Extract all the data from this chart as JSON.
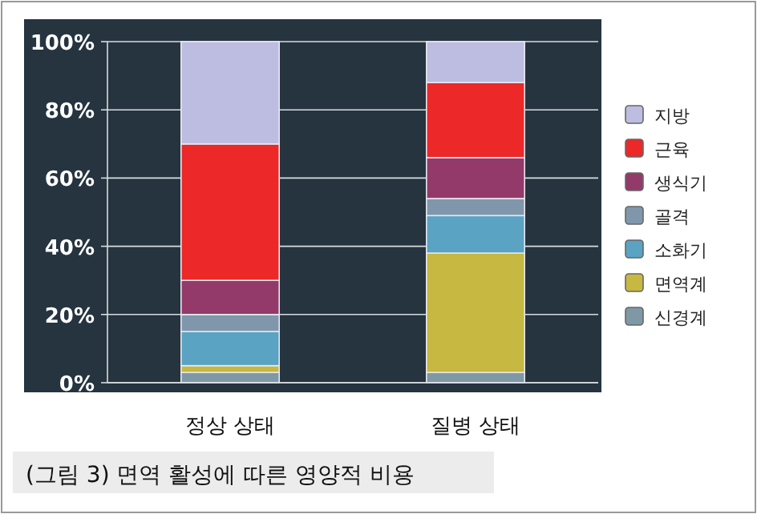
{
  "chart_data": {
    "type": "bar",
    "stacked": true,
    "categories": [
      "정상 상태",
      "질병 상태"
    ],
    "series": [
      {
        "name": "신경계",
        "color": "#7f98a6",
        "values": [
          3,
          3
        ]
      },
      {
        "name": "면역계",
        "color": "#c6b840",
        "values": [
          2,
          35
        ]
      },
      {
        "name": "소화기",
        "color": "#5aa3c3",
        "values": [
          10,
          11
        ]
      },
      {
        "name": "골격",
        "color": "#8097ab",
        "values": [
          5,
          5
        ]
      },
      {
        "name": "생식기",
        "color": "#933a6a",
        "values": [
          10,
          12
        ]
      },
      {
        "name": "근육",
        "color": "#ec2828",
        "values": [
          40,
          22
        ]
      },
      {
        "name": "지방",
        "color": "#bcbde0",
        "values": [
          30,
          12
        ]
      }
    ],
    "ylim": [
      0,
      100
    ],
    "yticks": [
      {
        "value": 0,
        "label": "0%"
      },
      {
        "value": 20,
        "label": "20%"
      },
      {
        "value": 40,
        "label": "40%"
      },
      {
        "value": 60,
        "label": "60%"
      },
      {
        "value": 80,
        "label": "80%"
      },
      {
        "value": 100,
        "label": "100%"
      }
    ],
    "grid": "y",
    "legend": "right",
    "annotations": [
      "(그림 3) 면역 활성에 따른 영양적 비용"
    ]
  }
}
